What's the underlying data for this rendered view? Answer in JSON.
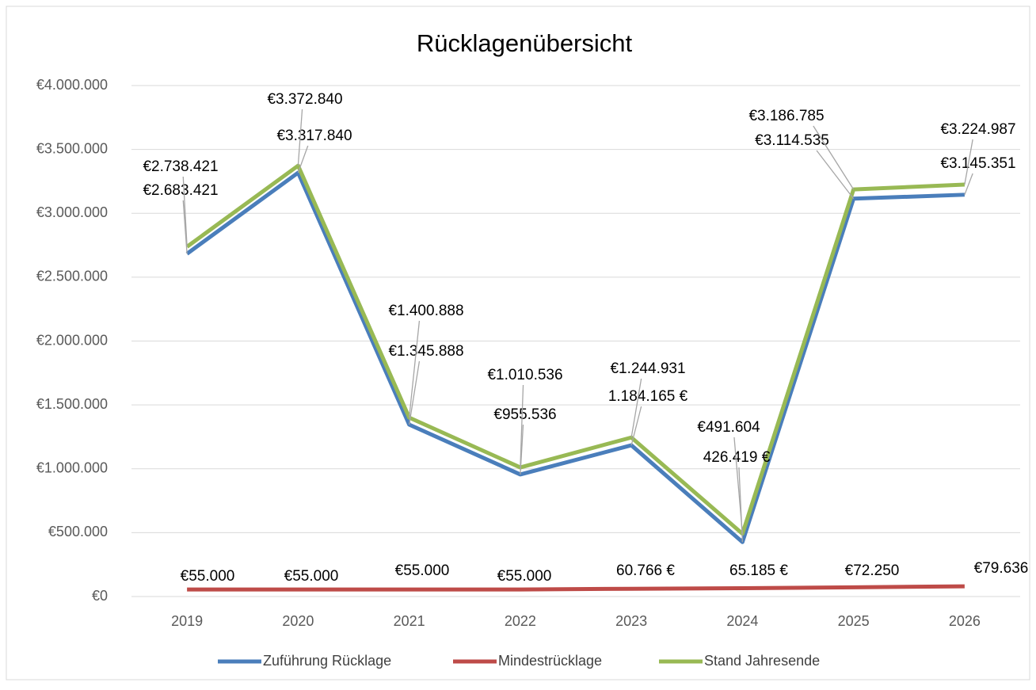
{
  "chart_data": {
    "type": "line",
    "title": "Rücklagenübersicht",
    "categories": [
      "2019",
      "2020",
      "2021",
      "2022",
      "2023",
      "2024",
      "2025",
      "2026"
    ],
    "series": [
      {
        "name": "Zuführung Rücklage",
        "color": "#4a7ebb",
        "values": [
          2683421,
          3317840,
          1345888,
          955536,
          1184165,
          426419,
          3114535,
          3145351
        ],
        "value_labels": [
          "€2.683.421",
          "€3.317.840",
          "€1.345.888",
          "€955.536",
          "1.184.165 €",
          "426.419 €",
          "€3.114.535",
          "€3.145.351"
        ]
      },
      {
        "name": "Mindestrücklage",
        "color": "#be4b48",
        "values": [
          55000,
          55000,
          55000,
          55000,
          60766,
          65185,
          72250,
          79636
        ],
        "value_labels": [
          "€55.000",
          "€55.000",
          "€55.000",
          "€55.000",
          "60.766 €",
          "65.185 €",
          "€72.250",
          "€79.636"
        ]
      },
      {
        "name": "Stand Jahresende",
        "color": "#98b954",
        "values": [
          2738421,
          3372840,
          1400888,
          1010536,
          1244931,
          491604,
          3186785,
          3224987
        ],
        "value_labels": [
          "€2.738.421",
          "€3.372.840",
          "€1.400.888",
          "€1.010.536",
          "€1.244.931",
          "€491.604",
          "€3.186.785",
          "€3.224.987"
        ]
      }
    ],
    "ylim": [
      0,
      4000000
    ],
    "yticks": [
      {
        "value": 0,
        "label": "€0"
      },
      {
        "value": 500000,
        "label": "€500.000"
      },
      {
        "value": 1000000,
        "label": "€1.000.000"
      },
      {
        "value": 1500000,
        "label": "€1.500.000"
      },
      {
        "value": 2000000,
        "label": "€2.000.000"
      },
      {
        "value": 2500000,
        "label": "€2.500.000"
      },
      {
        "value": 3000000,
        "label": "€3.000.000"
      },
      {
        "value": 3500000,
        "label": "€3.500.000"
      },
      {
        "value": 4000000,
        "label": "€4.000.000"
      }
    ],
    "grid": true,
    "legend": "bottom"
  }
}
